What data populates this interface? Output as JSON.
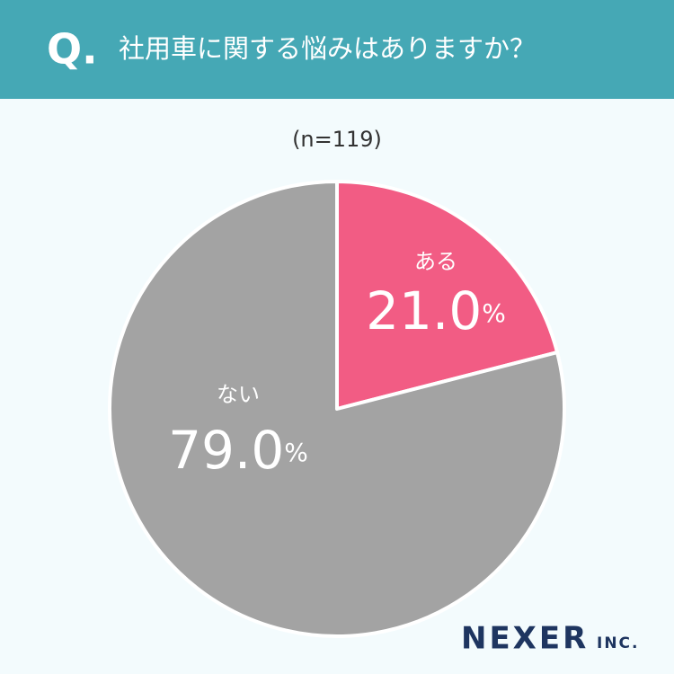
{
  "header": {
    "prefix": "Q.",
    "title": "社用車に関する悩みはありますか？"
  },
  "chart_data": {
    "type": "pie",
    "subtitle": "(n=119)",
    "categories": [
      "ある",
      "ない"
    ],
    "values": [
      21.0,
      79.0
    ],
    "value_labels": [
      "21.0%",
      "79.0%"
    ],
    "colors": [
      "#f25c84",
      "#a3a3a3"
    ]
  },
  "footer": {
    "brand": "NEXER",
    "brand_suffix": "INC."
  }
}
